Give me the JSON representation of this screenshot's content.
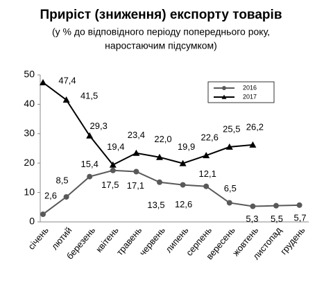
{
  "chart_data": {
    "type": "line",
    "title": "Приріст (зниження) експорту товарів",
    "subtitle": [
      "(у % до відповідного періоду попереднього року,",
      "наростаючим підсумком)"
    ],
    "categories": [
      "січень",
      "лютий",
      "березень",
      "квітень",
      "травень",
      "червень",
      "липень",
      "серпень",
      "вересень",
      "жовтень",
      "листопад",
      "грудень"
    ],
    "series": [
      {
        "name": "2016",
        "color": "#595959",
        "marker": "circle",
        "values": [
          2.6,
          8.5,
          15.4,
          17.5,
          17.1,
          13.5,
          12.6,
          12.1,
          6.5,
          5.3,
          5.5,
          5.7
        ],
        "value_labels": [
          "2,6",
          "8,5",
          "15,4",
          "17,5",
          "17,1",
          "13,5",
          "12,6",
          "12,1",
          "6,5",
          "5,3",
          "5,5",
          "5,7"
        ]
      },
      {
        "name": "2017",
        "color": "#000000",
        "marker": "triangle",
        "values": [
          47.4,
          41.5,
          29.3,
          19.4,
          23.4,
          22.0,
          19.9,
          22.6,
          25.5,
          26.2,
          null,
          null
        ],
        "value_labels": [
          "47,4",
          "41,5",
          "29,3",
          "19,4",
          "23,4",
          "22,0",
          "19,9",
          "22,6",
          "25,5",
          "26,2",
          null,
          null
        ]
      }
    ],
    "ylim": [
      0,
      50
    ],
    "yticks": [
      0,
      10,
      20,
      30,
      40,
      50
    ],
    "grid": false,
    "legend": "top-right"
  }
}
